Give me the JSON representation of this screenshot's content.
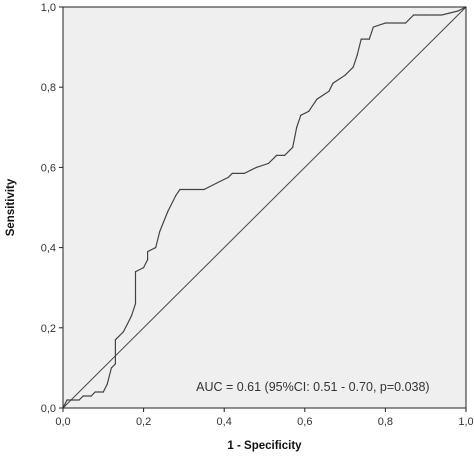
{
  "chart_data": {
    "type": "line",
    "xlabel": "1 - Specificity",
    "ylabel": "Sensitivity",
    "xlim": [
      0,
      1
    ],
    "ylim": [
      0,
      1
    ],
    "x_ticks": [
      0,
      0.2,
      0.4,
      0.6,
      0.8,
      1.0
    ],
    "y_ticks": [
      0,
      0.2,
      0.4,
      0.6,
      0.8,
      1.0
    ],
    "x_tick_labels": [
      "0,0",
      "0,2",
      "0,4",
      "0,6",
      "0,8",
      "1,0"
    ],
    "y_tick_labels": [
      "0,0",
      "0,2",
      "0,4",
      "0,6",
      "0,8",
      "1,0"
    ],
    "annotation": "AUC = 0.61 (95%CI: 0.51 - 0.70,  p=0.038)",
    "grid": false,
    "colors": {
      "plot_background": "#efefef",
      "curve": "#444444",
      "reference_line": "#444444",
      "frame": "#222222"
    },
    "series": [
      {
        "role": "roc_curve",
        "points": [
          [
            0.0,
            0.0
          ],
          [
            0.01,
            0.02
          ],
          [
            0.04,
            0.02
          ],
          [
            0.05,
            0.03
          ],
          [
            0.07,
            0.03
          ],
          [
            0.08,
            0.04
          ],
          [
            0.1,
            0.04
          ],
          [
            0.11,
            0.06
          ],
          [
            0.12,
            0.1
          ],
          [
            0.13,
            0.11
          ],
          [
            0.13,
            0.17
          ],
          [
            0.15,
            0.19
          ],
          [
            0.16,
            0.21
          ],
          [
            0.17,
            0.23
          ],
          [
            0.18,
            0.26
          ],
          [
            0.18,
            0.34
          ],
          [
            0.2,
            0.35
          ],
          [
            0.21,
            0.37
          ],
          [
            0.21,
            0.39
          ],
          [
            0.23,
            0.4
          ],
          [
            0.24,
            0.44
          ],
          [
            0.26,
            0.49
          ],
          [
            0.28,
            0.53
          ],
          [
            0.29,
            0.545
          ],
          [
            0.32,
            0.545
          ],
          [
            0.35,
            0.545
          ],
          [
            0.38,
            0.56
          ],
          [
            0.41,
            0.575
          ],
          [
            0.42,
            0.585
          ],
          [
            0.45,
            0.585
          ],
          [
            0.48,
            0.6
          ],
          [
            0.51,
            0.61
          ],
          [
            0.53,
            0.63
          ],
          [
            0.55,
            0.63
          ],
          [
            0.57,
            0.65
          ],
          [
            0.58,
            0.7
          ],
          [
            0.59,
            0.73
          ],
          [
            0.61,
            0.74
          ],
          [
            0.63,
            0.77
          ],
          [
            0.66,
            0.79
          ],
          [
            0.67,
            0.81
          ],
          [
            0.7,
            0.83
          ],
          [
            0.72,
            0.85
          ],
          [
            0.73,
            0.88
          ],
          [
            0.74,
            0.92
          ],
          [
            0.76,
            0.92
          ],
          [
            0.77,
            0.95
          ],
          [
            0.8,
            0.96
          ],
          [
            0.83,
            0.96
          ],
          [
            0.85,
            0.96
          ],
          [
            0.87,
            0.98
          ],
          [
            0.9,
            0.98
          ],
          [
            0.92,
            0.98
          ],
          [
            0.94,
            0.98
          ],
          [
            0.96,
            0.985
          ],
          [
            0.98,
            0.99
          ],
          [
            1.0,
            1.0
          ]
        ]
      },
      {
        "role": "reference_line",
        "points": [
          [
            0,
            0
          ],
          [
            1,
            1
          ]
        ]
      }
    ]
  }
}
